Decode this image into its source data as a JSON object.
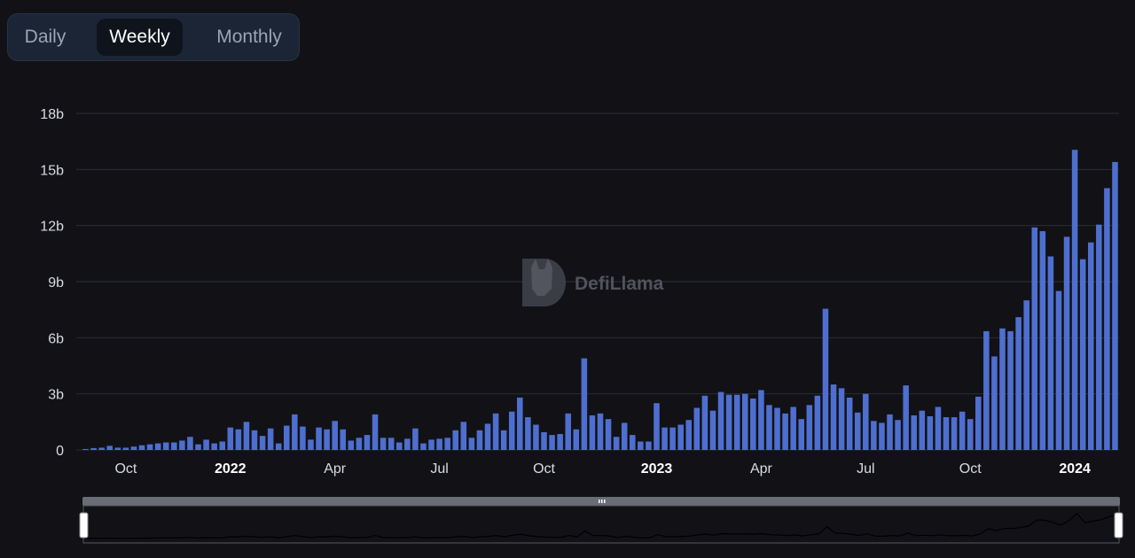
{
  "toggle": {
    "options": [
      "Daily",
      "Weekly",
      "Monthly"
    ],
    "selected": "Weekly"
  },
  "watermark": "DefiLlama",
  "colors": {
    "background": "#121216",
    "bar": "#4e6fcf",
    "grid": "#2a2d35"
  },
  "chart_data": {
    "type": "bar",
    "title": "",
    "xlabel": "",
    "ylabel": "",
    "ylim": [
      0,
      18
    ],
    "yticks": [
      "0",
      "3b",
      "6b",
      "9b",
      "12b",
      "15b",
      "18b"
    ],
    "y_unit": "billions",
    "xticks": [
      {
        "label": "Oct",
        "bold": false
      },
      {
        "label": "2022",
        "bold": true
      },
      {
        "label": "Apr",
        "bold": false
      },
      {
        "label": "Jul",
        "bold": false
      },
      {
        "label": "Oct",
        "bold": false
      },
      {
        "label": "2023",
        "bold": true
      },
      {
        "label": "Apr",
        "bold": false
      },
      {
        "label": "Jul",
        "bold": false
      },
      {
        "label": "Oct",
        "bold": false
      },
      {
        "label": "2024",
        "bold": true
      }
    ],
    "grid": true,
    "values": [
      0.05,
      0.1,
      0.12,
      0.22,
      0.12,
      0.12,
      0.18,
      0.25,
      0.3,
      0.35,
      0.4,
      0.4,
      0.5,
      0.7,
      0.3,
      0.55,
      0.35,
      0.45,
      1.2,
      1.1,
      1.5,
      1.05,
      0.75,
      1.15,
      0.35,
      1.3,
      1.9,
      1.25,
      0.55,
      1.2,
      1.1,
      1.55,
      1.1,
      0.5,
      0.65,
      0.8,
      1.9,
      0.65,
      0.65,
      0.4,
      0.6,
      1.15,
      0.35,
      0.55,
      0.6,
      0.65,
      1.05,
      1.5,
      0.65,
      1.05,
      1.4,
      1.95,
      1.05,
      2.05,
      2.8,
      1.75,
      1.35,
      0.95,
      0.8,
      0.85,
      1.95,
      1.1,
      4.9,
      1.85,
      1.95,
      1.65,
      0.7,
      1.45,
      0.8,
      0.45,
      0.45,
      2.5,
      1.2,
      1.2,
      1.35,
      1.6,
      2.25,
      2.9,
      2.1,
      3.1,
      2.95,
      2.95,
      3.0,
      2.75,
      3.2,
      2.4,
      2.25,
      1.95,
      2.3,
      1.65,
      2.4,
      2.9,
      7.55,
      3.5,
      3.3,
      2.8,
      2.0,
      3.0,
      1.55,
      1.45,
      1.9,
      1.6,
      3.45,
      1.85,
      2.1,
      1.8,
      2.3,
      1.75,
      1.75,
      2.05,
      1.65,
      2.85,
      6.35,
      5.0,
      6.5,
      6.35,
      7.1,
      8.0,
      11.9,
      11.7,
      10.35,
      8.5,
      11.4,
      16.05,
      10.2,
      11.1,
      12.05,
      14.0,
      15.4
    ]
  }
}
